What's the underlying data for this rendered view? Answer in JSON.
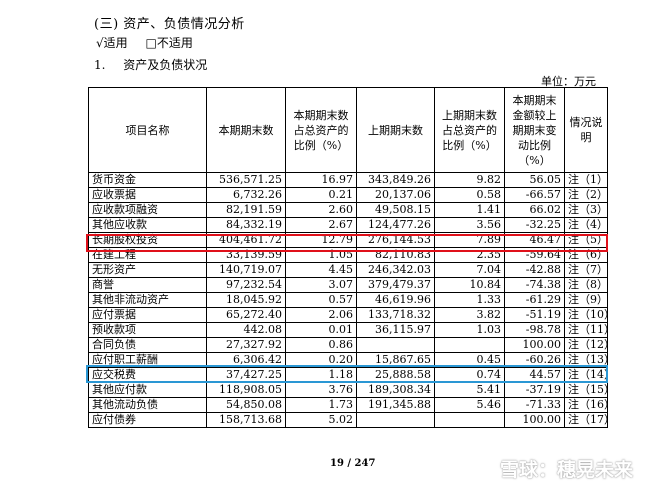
{
  "section_title": "(三) 资产、负债情况分析",
  "applicability": {
    "applicable": "√适用",
    "not_applicable": "□不适用"
  },
  "sub_title": {
    "num": "1.",
    "text": "资产及负债状况"
  },
  "unit": "单位：万元",
  "table": {
    "headers": [
      "项目名称",
      "本期期末数",
      "本期期末数占总资产的比例（%）",
      "上期期末数",
      "上期期末数占总资产的比例（%）",
      "本期期末金额较上期期末变动比例（%）",
      "情况说明"
    ],
    "rows": [
      [
        "货币资金",
        "536,571.25",
        "16.97",
        "343,849.26",
        "9.82",
        "56.05",
        "注（1）"
      ],
      [
        "应收票据",
        "6,732.26",
        "0.21",
        "20,137.06",
        "0.58",
        "-66.57",
        "注（2）"
      ],
      [
        "应收款项融资",
        "82,191.59",
        "2.60",
        "49,508.15",
        "1.41",
        "66.02",
        "注（3）"
      ],
      [
        "其他应收款",
        "84,332.19",
        "2.67",
        "124,477.26",
        "3.56",
        "-32.25",
        "注（4）"
      ],
      [
        "长期股权投资",
        "404,461.72",
        "12.79",
        "276,144.53",
        "7.89",
        "46.47",
        "注（5）"
      ],
      [
        "在建工程",
        "33,139.59",
        "1.05",
        "82,110.83",
        "2.35",
        "-59.64",
        "注（6）"
      ],
      [
        "无形资产",
        "140,719.07",
        "4.45",
        "246,342.03",
        "7.04",
        "-42.88",
        "注（7）"
      ],
      [
        "商誉",
        "97,232.54",
        "3.07",
        "379,479.37",
        "10.84",
        "-74.38",
        "注（8）"
      ],
      [
        "其他非流动资产",
        "18,045.92",
        "0.57",
        "46,619.96",
        "1.33",
        "-61.29",
        "注（9）"
      ],
      [
        "应付票据",
        "65,272.40",
        "2.06",
        "133,718.32",
        "3.82",
        "-51.19",
        "注（10）"
      ],
      [
        "预收款项",
        "442.08",
        "0.01",
        "36,115.97",
        "1.03",
        "-98.78",
        "注（11）"
      ],
      [
        "合同负债",
        "27,327.92",
        "0.86",
        "",
        "",
        "100.00",
        "注（12）"
      ],
      [
        "应付职工薪酬",
        "6,306.42",
        "0.20",
        "15,867.65",
        "0.45",
        "-60.26",
        "注（13）"
      ],
      [
        "应交税费",
        "37,427.25",
        "1.18",
        "25,888.58",
        "0.74",
        "44.57",
        "注（14）"
      ],
      [
        "其他应付款",
        "118,908.05",
        "3.76",
        "189,308.34",
        "5.41",
        "-37.19",
        "注（15）"
      ],
      [
        "其他流动负债",
        "54,850.08",
        "1.73",
        "191,345.88",
        "5.46",
        "-71.33",
        "注（16）"
      ],
      [
        "应付债券",
        "158,713.68",
        "5.02",
        "",
        "",
        "100.00",
        "注（17）"
      ]
    ]
  },
  "highlight_colors": {
    "red": "#e0101a",
    "blue": "#2a97d4"
  },
  "page_number": "19 / 247",
  "watermark": "雪球：穗晃未来"
}
